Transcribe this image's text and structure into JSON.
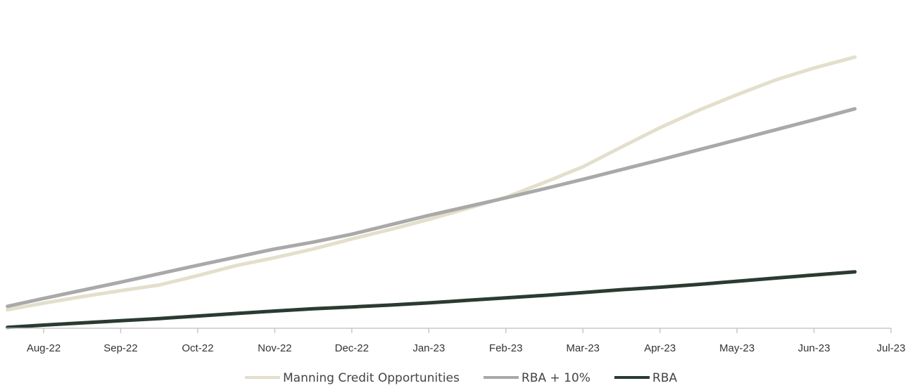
{
  "chart_data": {
    "type": "line",
    "title": "",
    "xlabel": "",
    "ylabel": "",
    "categories": [
      "Aug-22",
      "Sep-22",
      "Oct-22",
      "Nov-22",
      "Dec-22",
      "Jan-23",
      "Feb-23",
      "Mar-23",
      "Apr-23",
      "May-23",
      "Jun-23",
      "Jul-23"
    ],
    "grid": false,
    "legend_position": "bottom",
    "series": [
      {
        "name": "Manning Credit Opportunities",
        "color": "#e3dfcc",
        "x": [
          -0.47,
          0.0,
          0.5,
          1.0,
          1.5,
          2.0,
          2.5,
          3.0,
          3.5,
          4.0,
          4.5,
          5.0,
          5.5,
          6.0,
          6.5,
          7.0,
          7.5,
          8.0,
          8.5,
          9.0,
          9.5,
          10.0,
          10.53
        ],
        "y": [
          0.059,
          0.08,
          0.101,
          0.12,
          0.138,
          0.168,
          0.2,
          0.225,
          0.253,
          0.285,
          0.315,
          0.347,
          0.382,
          0.418,
          0.465,
          0.515,
          0.578,
          0.64,
          0.695,
          0.745,
          0.792,
          0.83,
          0.865
        ]
      },
      {
        "name": "RBA + 10%",
        "color": "#a9a9a9",
        "x": [
          -0.47,
          0.0,
          0.5,
          1.0,
          1.5,
          2.0,
          2.5,
          3.0,
          3.5,
          4.0,
          4.5,
          5.0,
          5.5,
          6.0,
          6.5,
          7.0,
          7.5,
          8.0,
          8.5,
          9.0,
          9.5,
          10.0,
          10.53
        ],
        "y": [
          0.07,
          0.095,
          0.121,
          0.147,
          0.174,
          0.201,
          0.227,
          0.253,
          0.275,
          0.3,
          0.33,
          0.36,
          0.388,
          0.416,
          0.445,
          0.475,
          0.506,
          0.537,
          0.569,
          0.601,
          0.633,
          0.665,
          0.7
        ]
      },
      {
        "name": "RBA",
        "color": "#2a3b31",
        "x": [
          -0.47,
          0.0,
          0.5,
          1.0,
          1.5,
          2.0,
          2.5,
          3.0,
          3.5,
          4.0,
          4.5,
          5.0,
          5.5,
          6.0,
          6.5,
          7.0,
          7.5,
          8.0,
          8.5,
          9.0,
          9.5,
          10.0,
          10.53
        ],
        "y": [
          0.003,
          0.01,
          0.017,
          0.024,
          0.031,
          0.039,
          0.047,
          0.055,
          0.062,
          0.068,
          0.074,
          0.081,
          0.089,
          0.097,
          0.105,
          0.114,
          0.123,
          0.131,
          0.14,
          0.15,
          0.16,
          0.17,
          0.18
        ]
      }
    ],
    "ylim": [
      0,
      1
    ]
  }
}
